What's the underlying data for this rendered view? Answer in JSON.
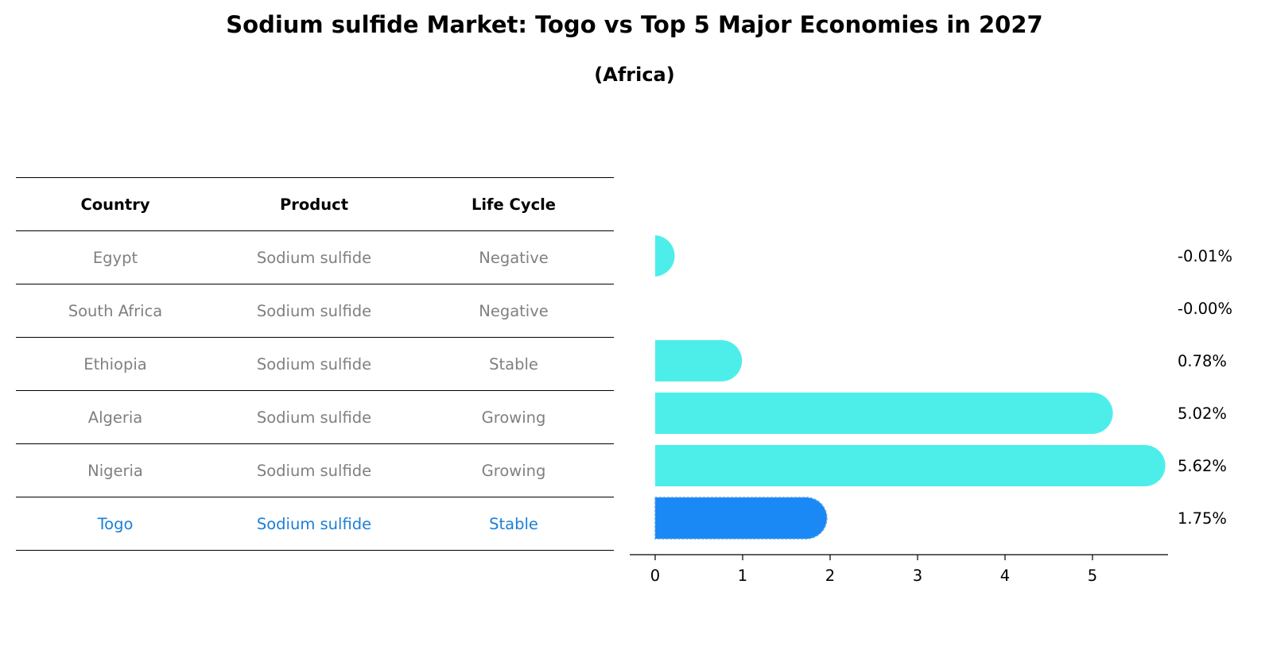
{
  "title": "Sodium sulfide Market: Togo vs Top 5 Major Economies in 2027",
  "subtitle": "(Africa)",
  "table": {
    "headers": [
      "Country",
      "Product",
      "Life Cycle"
    ],
    "rows": [
      {
        "country": "Egypt",
        "product": "Sodium sulfide",
        "life_cycle": "Negative"
      },
      {
        "country": "South Africa",
        "product": "Sodium sulfide",
        "life_cycle": "Negative"
      },
      {
        "country": "Ethiopia",
        "product": "Sodium sulfide",
        "life_cycle": "Stable"
      },
      {
        "country": "Algeria",
        "product": "Sodium sulfide",
        "life_cycle": "Growing"
      },
      {
        "country": "Nigeria",
        "product": "Sodium sulfide",
        "life_cycle": "Growing"
      },
      {
        "country": "Togo",
        "product": "Sodium sulfide",
        "life_cycle": "Stable"
      }
    ]
  },
  "chart_data": {
    "type": "bar",
    "orientation": "horizontal",
    "categories": [
      "Egypt",
      "South Africa",
      "Ethiopia",
      "Algeria",
      "Nigeria",
      "Togo"
    ],
    "values": [
      -0.01,
      -0.0,
      0.78,
      5.02,
      5.62,
      1.75
    ],
    "value_labels": [
      "-0.01%",
      "-0.00%",
      "0.78%",
      "5.02%",
      "5.62%",
      "1.75%"
    ],
    "highlight": "Togo",
    "xticks": [
      0,
      1,
      2,
      3,
      4,
      5
    ],
    "xlim": [
      -0.3,
      5.9
    ],
    "colors": {
      "default": "#4deeea",
      "highlight": "#1a88f5"
    }
  }
}
